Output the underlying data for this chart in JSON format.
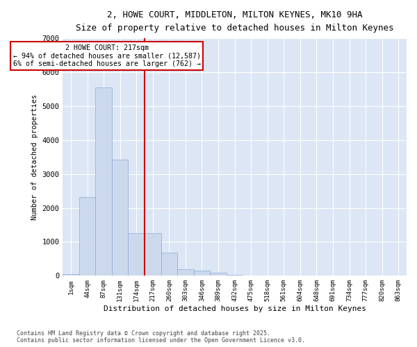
{
  "title_line1": "2, HOWE COURT, MIDDLETON, MILTON KEYNES, MK10 9HA",
  "title_line2": "Size of property relative to detached houses in Milton Keynes",
  "xlabel": "Distribution of detached houses by size in Milton Keynes",
  "ylabel": "Number of detached properties",
  "bar_color": "#ccd9ed",
  "bar_edge_color": "#8aaad4",
  "background_color": "#dce6f5",
  "grid_color": "#ffffff",
  "vline_color": "#cc0000",
  "annotation_text": "2 HOWE COURT: 217sqm\n← 94% of detached houses are smaller (12,587)\n6% of semi-detached houses are larger (762) →",
  "categories": [
    "1sqm",
    "44sqm",
    "87sqm",
    "131sqm",
    "174sqm",
    "217sqm",
    "260sqm",
    "303sqm",
    "346sqm",
    "389sqm",
    "432sqm",
    "475sqm",
    "518sqm",
    "561sqm",
    "604sqm",
    "648sqm",
    "691sqm",
    "734sqm",
    "777sqm",
    "820sqm",
    "863sqm"
  ],
  "values": [
    50,
    2310,
    5550,
    3430,
    1250,
    1250,
    680,
    190,
    145,
    85,
    28,
    12,
    6,
    4,
    2,
    1,
    1,
    0,
    0,
    0,
    0
  ],
  "ylim": [
    0,
    7000
  ],
  "yticks": [
    0,
    1000,
    2000,
    3000,
    4000,
    5000,
    6000,
    7000
  ],
  "footer_line1": "Contains HM Land Registry data © Crown copyright and database right 2025.",
  "footer_line2": "Contains public sector information licensed under the Open Government Licence v3.0."
}
